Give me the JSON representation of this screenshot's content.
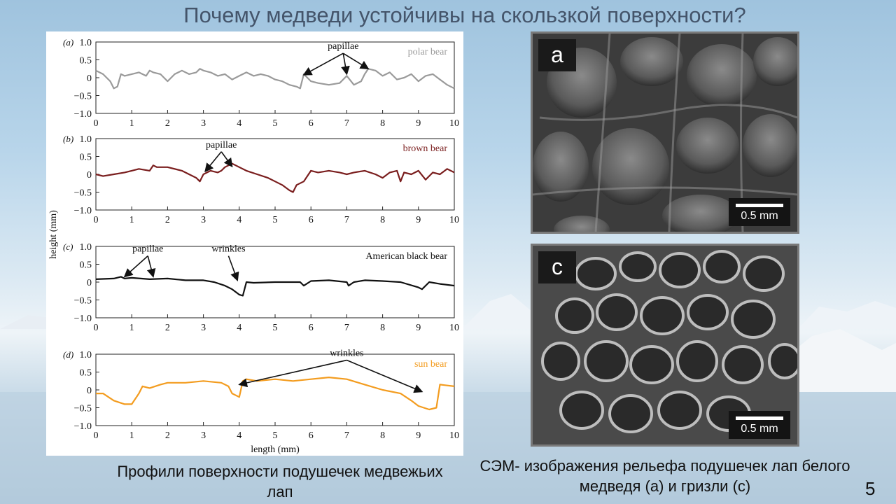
{
  "slide": {
    "title": "Почему медведи устойчивы на скользкой поверхности?",
    "caption_left": "Профили поверхности подушечек медвежьих лап",
    "caption_right": "СЭМ- изображения рельефа подушечек лап белого медведя (а) и гризли (с)",
    "page_number": "5"
  },
  "sem_images": [
    {
      "letter": "a",
      "scale_label": "0.5 mm"
    },
    {
      "letter": "c",
      "scale_label": "0.5 mm"
    }
  ],
  "chart_data": [
    {
      "type": "line",
      "panel_label": "(a)",
      "legend": "polar bear",
      "color": "#9a9a9a",
      "xlim": [
        0,
        10
      ],
      "ylim": [
        -1,
        1
      ],
      "x_ticks": [
        "0",
        "1",
        "2",
        "3",
        "4",
        "5",
        "6",
        "7",
        "8",
        "9",
        "10"
      ],
      "y_ticks": [
        "1.0",
        "0.5",
        "0",
        "−0.5",
        "−1.0"
      ],
      "annotations": [
        {
          "text": "papillae",
          "text_x": 6.9,
          "text_y": 0.8,
          "targets": [
            [
              5.8,
              0.08
            ],
            [
              7.0,
              0.1
            ],
            [
              7.6,
              0.25
            ]
          ]
        }
      ],
      "x": [
        0,
        0.2,
        0.4,
        0.5,
        0.6,
        0.7,
        0.8,
        1.0,
        1.2,
        1.4,
        1.5,
        1.6,
        1.8,
        1.9,
        2.0,
        2.2,
        2.4,
        2.6,
        2.8,
        2.9,
        3.0,
        3.2,
        3.4,
        3.6,
        3.8,
        4.0,
        4.2,
        4.4,
        4.6,
        4.8,
        5.0,
        5.2,
        5.4,
        5.6,
        5.7,
        5.8,
        6.0,
        6.2,
        6.5,
        6.8,
        7.0,
        7.2,
        7.4,
        7.5,
        7.6,
        7.8,
        8.0,
        8.2,
        8.4,
        8.6,
        8.8,
        9.0,
        9.2,
        9.4,
        9.6,
        9.8,
        10.0
      ],
      "y": [
        0.2,
        0.1,
        -0.1,
        -0.3,
        -0.25,
        0.1,
        0.05,
        0.1,
        0.15,
        0.05,
        0.2,
        0.15,
        0.1,
        0.0,
        -0.1,
        0.1,
        0.2,
        0.1,
        0.15,
        0.25,
        0.2,
        0.15,
        0.05,
        0.1,
        -0.05,
        0.05,
        0.15,
        0.05,
        0.1,
        0.05,
        -0.05,
        -0.1,
        -0.2,
        -0.25,
        -0.3,
        0.1,
        -0.1,
        -0.15,
        -0.2,
        -0.15,
        0.05,
        -0.2,
        -0.1,
        0.1,
        0.25,
        0.2,
        0.05,
        0.15,
        -0.05,
        0.0,
        0.1,
        -0.1,
        0.05,
        0.1,
        -0.05,
        -0.2,
        -0.3
      ]
    },
    {
      "type": "line",
      "panel_label": "(b)",
      "legend": "brown bear",
      "color": "#7a1e1e",
      "xlim": [
        0,
        10
      ],
      "ylim": [
        -1,
        1
      ],
      "x_ticks": [
        "0",
        "1",
        "2",
        "3",
        "4",
        "5",
        "6",
        "7",
        "8",
        "9",
        "10"
      ],
      "y_ticks": [
        "1.0",
        "0.5",
        "0",
        "−0.5",
        "−1.0"
      ],
      "annotations": [
        {
          "text": "papillae",
          "text_x": 3.5,
          "text_y": 0.75,
          "targets": [
            [
              3.05,
              0.08
            ],
            [
              3.8,
              0.22
            ]
          ]
        }
      ],
      "x": [
        0,
        0.2,
        0.5,
        0.8,
        1.0,
        1.2,
        1.5,
        1.6,
        1.7,
        2.0,
        2.4,
        2.6,
        2.8,
        2.9,
        3.0,
        3.2,
        3.4,
        3.5,
        3.6,
        3.8,
        4.0,
        4.2,
        4.5,
        4.8,
        5.0,
        5.2,
        5.4,
        5.5,
        5.6,
        5.8,
        6.0,
        6.2,
        6.5,
        6.8,
        7.0,
        7.2,
        7.5,
        7.8,
        8.0,
        8.2,
        8.4,
        8.5,
        8.6,
        8.8,
        9.0,
        9.2,
        9.4,
        9.6,
        9.8,
        10.0
      ],
      "y": [
        0.0,
        -0.05,
        0.0,
        0.05,
        0.1,
        0.15,
        0.1,
        0.25,
        0.2,
        0.2,
        0.1,
        0.0,
        -0.1,
        -0.2,
        0.0,
        0.1,
        0.05,
        0.1,
        0.2,
        0.3,
        0.2,
        0.1,
        0.0,
        -0.1,
        -0.2,
        -0.3,
        -0.45,
        -0.5,
        -0.3,
        -0.2,
        0.1,
        0.05,
        0.1,
        0.05,
        0.0,
        0.05,
        0.1,
        0.0,
        -0.1,
        0.05,
        0.1,
        -0.2,
        0.05,
        0.0,
        0.1,
        -0.15,
        0.05,
        0.0,
        0.15,
        0.05
      ]
    },
    {
      "type": "line",
      "panel_label": "(c)",
      "legend": "American black bear",
      "color": "#111111",
      "xlim": [
        0,
        10
      ],
      "ylim": [
        -1,
        1
      ],
      "x_ticks": [
        "0",
        "1",
        "2",
        "3",
        "4",
        "5",
        "6",
        "7",
        "8",
        "9",
        "10"
      ],
      "y_ticks": [
        "1.0",
        "0.5",
        "0",
        "−0.5",
        "−1.0"
      ],
      "annotations": [
        {
          "text": "papillae",
          "text_x": 1.45,
          "text_y": 0.85,
          "targets": [
            [
              0.8,
              0.15
            ],
            [
              1.6,
              0.15
            ]
          ]
        },
        {
          "text": "wrinkles",
          "text_x": 3.7,
          "text_y": 0.85,
          "targets": [
            [
              3.95,
              0.05
            ]
          ]
        }
      ],
      "x": [
        0,
        0.5,
        0.7,
        0.8,
        1.0,
        1.5,
        2.0,
        2.5,
        3.0,
        3.3,
        3.6,
        3.8,
        4.0,
        4.1,
        4.2,
        4.4,
        5.0,
        5.7,
        5.8,
        6.0,
        6.5,
        7.0,
        7.05,
        7.2,
        7.5,
        8.0,
        8.5,
        9.0,
        9.1,
        9.3,
        9.6,
        10.0
      ],
      "y": [
        0.08,
        0.1,
        0.15,
        0.1,
        0.12,
        0.08,
        0.1,
        0.05,
        0.05,
        0.0,
        -0.1,
        -0.2,
        -0.35,
        -0.38,
        0.0,
        -0.02,
        0.0,
        0.0,
        -0.1,
        0.03,
        0.05,
        0.0,
        -0.1,
        0.0,
        0.05,
        0.03,
        0.0,
        -0.15,
        -0.2,
        0.0,
        -0.05,
        -0.1
      ]
    },
    {
      "type": "line",
      "panel_label": "(d)",
      "legend": "sun bear",
      "color": "#f39c1f",
      "xlim": [
        0,
        10
      ],
      "ylim": [
        -1,
        1
      ],
      "x_ticks": [
        "0",
        "1",
        "2",
        "3",
        "4",
        "5",
        "6",
        "7",
        "8",
        "9",
        "10"
      ],
      "y_ticks": [
        "1.0",
        "0.5",
        "0",
        "−0.5",
        "−1.0"
      ],
      "axis_xlabel": "length (mm)",
      "annotations": [
        {
          "text": "wrinkles",
          "text_x": 7.0,
          "text_y": 0.95,
          "targets": [
            [
              4.0,
              0.15
            ],
            [
              9.1,
              -0.05
            ]
          ]
        }
      ],
      "x": [
        0,
        0.2,
        0.5,
        0.8,
        1.0,
        1.2,
        1.3,
        1.5,
        1.8,
        2.0,
        2.5,
        3.0,
        3.5,
        3.7,
        3.8,
        4.0,
        4.1,
        4.2,
        4.5,
        5.0,
        5.5,
        6.0,
        6.5,
        7.0,
        7.5,
        8.0,
        8.5,
        8.8,
        9.0,
        9.3,
        9.5,
        9.6,
        10.0
      ],
      "y": [
        -0.1,
        -0.1,
        -0.3,
        -0.4,
        -0.4,
        -0.1,
        0.1,
        0.05,
        0.15,
        0.2,
        0.2,
        0.25,
        0.2,
        0.1,
        -0.1,
        -0.2,
        0.25,
        0.3,
        0.25,
        0.3,
        0.25,
        0.3,
        0.35,
        0.3,
        0.15,
        0.0,
        -0.1,
        -0.3,
        -0.45,
        -0.55,
        -0.5,
        0.15,
        0.1
      ]
    }
  ],
  "axis_ylabel": "height (mm)"
}
